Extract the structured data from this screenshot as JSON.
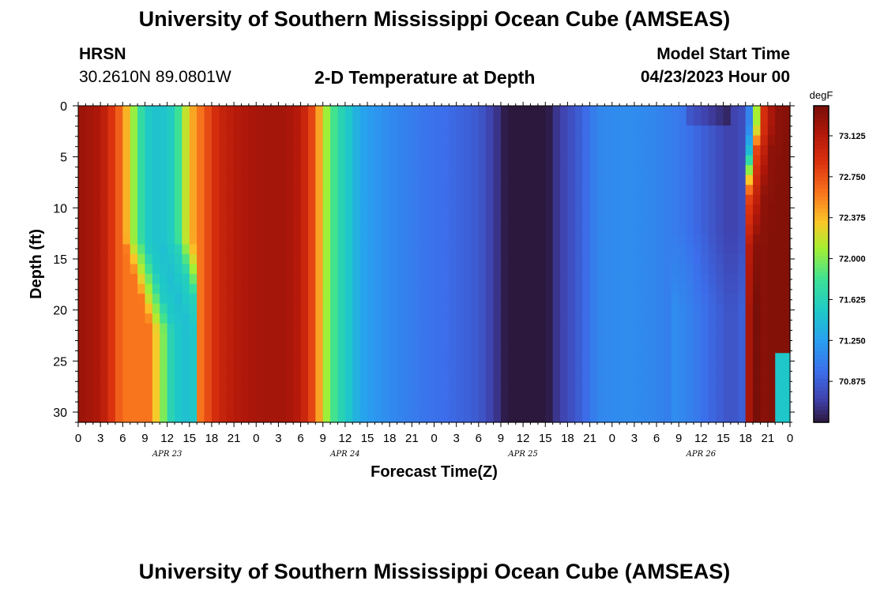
{
  "header": {
    "main_title": "University of Southern Mississippi Ocean Cube (AMSEAS)",
    "station": "HRSN",
    "coords": "30.2610N  89.0801W",
    "plot_title": "2-D Temperature at Depth",
    "model_start_label": "Model Start Time",
    "model_start_value": "04/23/2023 Hour 00",
    "footer_title": "University of Southern Mississippi Ocean Cube (AMSEAS)"
  },
  "chart_data": {
    "type": "heatmap",
    "title": "2-D Temperature at Depth",
    "xlabel": "Forecast Time(Z)",
    "ylabel": "Depth (ft)",
    "x_range_hours": [
      0,
      96
    ],
    "y_range_ft": [
      0,
      31
    ],
    "x_tick_labels": [
      "0",
      "3",
      "6",
      "9",
      "12",
      "15",
      "18",
      "21",
      "0",
      "3",
      "6",
      "9",
      "12",
      "15",
      "18",
      "21",
      "0",
      "3",
      "6",
      "9",
      "12",
      "15",
      "18",
      "21",
      "0",
      "3",
      "6",
      "9",
      "12",
      "15",
      "18",
      "21",
      "0"
    ],
    "date_labels": [
      {
        "label": "APR 23",
        "hour": 12
      },
      {
        "label": "APR 24",
        "hour": 36
      },
      {
        "label": "APR 25",
        "hour": 60
      },
      {
        "label": "APR 26",
        "hour": 84
      }
    ],
    "y_ticks": [
      0,
      5,
      10,
      15,
      20,
      25,
      30
    ],
    "colorbar": {
      "unit": "degF",
      "min": 70.5,
      "max": 73.4,
      "tick_values": [
        73.125,
        72.75,
        72.375,
        72.0,
        71.625,
        71.25,
        70.875
      ],
      "tick_labels": [
        "73.125",
        "72.750",
        "72.375",
        "72.000",
        "71.625",
        "71.250",
        "70.875"
      ]
    },
    "surface_profile_degF": {
      "hours": [
        0,
        3,
        6,
        7,
        8,
        9,
        11,
        13,
        14,
        15,
        17,
        19,
        22,
        25,
        28,
        30,
        32,
        33,
        35,
        38,
        40,
        43,
        47,
        50,
        54,
        57,
        58,
        60,
        62,
        63,
        64,
        65,
        68,
        70,
        74,
        78,
        82,
        84,
        86,
        88,
        90,
        91,
        92,
        94,
        96
      ],
      "temps": [
        73.25,
        73.15,
        72.6,
        72.2,
        71.9,
        71.55,
        71.45,
        71.6,
        72.0,
        72.35,
        72.7,
        73.0,
        73.15,
        73.2,
        73.2,
        73.1,
        72.7,
        72.2,
        71.7,
        71.3,
        71.2,
        71.1,
        71.0,
        70.95,
        70.85,
        70.6,
        70.45,
        70.4,
        70.4,
        70.45,
        70.6,
        70.7,
        70.9,
        71.1,
        71.15,
        71.1,
        71.0,
        70.9,
        70.8,
        70.7,
        70.8,
        71.4,
        72.8,
        73.3,
        73.35
      ]
    }
  }
}
